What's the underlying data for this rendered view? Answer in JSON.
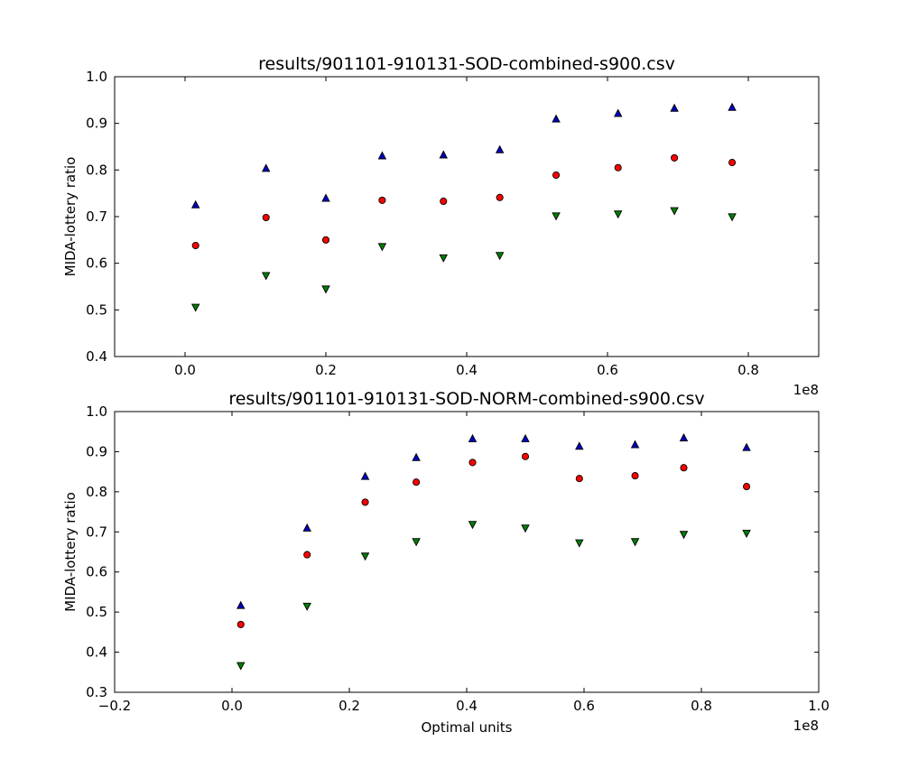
{
  "chart_data": [
    {
      "type": "scatter",
      "title": "results/901101-910131-SOD-combined-s900.csv",
      "xlabel": "",
      "ylabel": "MIDA-lottery ratio",
      "x_offset_text": "1e8",
      "xlim": [
        -0.1,
        0.9
      ],
      "ylim": [
        0.4,
        1.0
      ],
      "xticks": [
        "0.0",
        "0.2",
        "0.4",
        "0.6",
        "0.8"
      ],
      "yticks": [
        "0.4",
        "0.5",
        "0.6",
        "0.7",
        "0.8",
        "0.9",
        "1.0"
      ],
      "x": [
        0.015,
        0.115,
        0.2,
        0.28,
        0.367,
        0.447,
        0.527,
        0.615,
        0.695,
        0.777
      ],
      "series": [
        {
          "marker": "triangle-up",
          "color": "#0000bf",
          "values": [
            0.725,
            0.803,
            0.739,
            0.83,
            0.832,
            0.843,
            0.909,
            0.921,
            0.932,
            0.934
          ]
        },
        {
          "marker": "circle",
          "color": "#ff0000",
          "values": [
            0.638,
            0.698,
            0.65,
            0.735,
            0.733,
            0.741,
            0.789,
            0.805,
            0.826,
            0.816
          ]
        },
        {
          "marker": "triangle-down",
          "color": "#007f00",
          "values": [
            0.506,
            0.574,
            0.545,
            0.636,
            0.612,
            0.617,
            0.702,
            0.706,
            0.713,
            0.7
          ]
        }
      ]
    },
    {
      "type": "scatter",
      "title": "results/901101-910131-SOD-NORM-combined-s900.csv",
      "xlabel": "Optimal units",
      "ylabel": "MIDA-lottery ratio",
      "x_offset_text": "1e8",
      "xlim": [
        -0.2,
        1.0
      ],
      "ylim": [
        0.3,
        1.0
      ],
      "xticks": [
        "−0.2",
        "0.0",
        "0.2",
        "0.4",
        "0.6",
        "0.8",
        "1.0"
      ],
      "yticks": [
        "0.3",
        "0.4",
        "0.5",
        "0.6",
        "0.7",
        "0.8",
        "0.9",
        "1.0"
      ],
      "x": [
        0.015,
        0.128,
        0.227,
        0.314,
        0.41,
        0.5,
        0.592,
        0.687,
        0.77,
        0.877
      ],
      "series": [
        {
          "marker": "triangle-up",
          "color": "#0000bf",
          "values": [
            0.516,
            0.709,
            0.838,
            0.885,
            0.932,
            0.932,
            0.913,
            0.917,
            0.934,
            0.91
          ]
        },
        {
          "marker": "circle",
          "color": "#ff0000",
          "values": [
            0.469,
            0.643,
            0.774,
            0.824,
            0.873,
            0.888,
            0.833,
            0.84,
            0.86,
            0.813
          ]
        },
        {
          "marker": "triangle-down",
          "color": "#007f00",
          "values": [
            0.367,
            0.515,
            0.64,
            0.676,
            0.719,
            0.71,
            0.673,
            0.676,
            0.694,
            0.697
          ]
        }
      ]
    }
  ]
}
